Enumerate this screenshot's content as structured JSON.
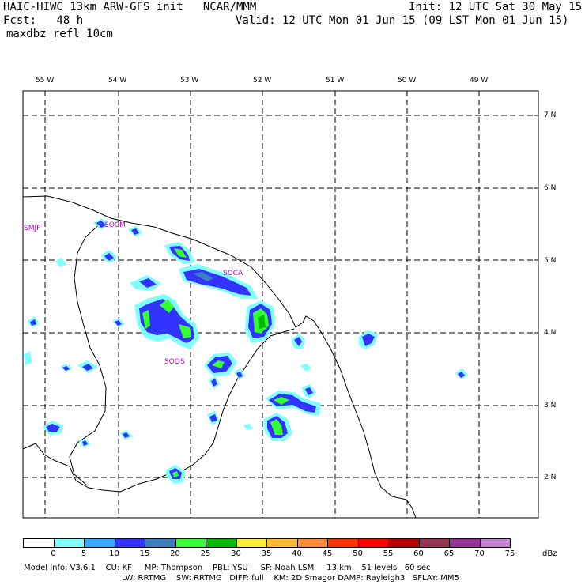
{
  "header": {
    "line1_left": "HAIC-HIWC 13km ARW-GFS init   NCAR/MMM",
    "line1_right": "Init: 12 UTC Sat 30 May 15",
    "line2_left": "Fcst:   48 h",
    "line2_right": "Valid: 12 UTC Mon 01 Jun 15 (09 LST Mon 01 Jun 15)",
    "line3": "maxdbz_refl_10cm"
  },
  "longitudes": [
    "55 W",
    "54 W",
    "53 W",
    "52 W",
    "51 W",
    "50 W",
    "49 W"
  ],
  "latitudes": [
    "7 N",
    "6 N",
    "5 N",
    "4 N",
    "3 N",
    "2 N"
  ],
  "stations": [
    "SMJP",
    "SOCM",
    "SOCA",
    "SOOS"
  ],
  "colorbar": {
    "unit": "dBz",
    "levels": [
      "0",
      "5",
      "10",
      "15",
      "20",
      "25",
      "30",
      "35",
      "40",
      "45",
      "50",
      "55",
      "60",
      "65",
      "70",
      "75"
    ],
    "colors": [
      "#ffffff",
      "#7fffff",
      "#33aaff",
      "#3333ff",
      "#3a7fbf",
      "#33ff33",
      "#00bb00",
      "#ffee33",
      "#ffbb33",
      "#ff8833",
      "#ff3300",
      "#ff0000",
      "#bb0000",
      "#993355",
      "#993399",
      "#c07fcf"
    ]
  },
  "footer": {
    "line1": "Model Info: V3.6.1    CU: KF     MP: Thompson    PBL: YSU     SF: Noah LSM     13 km    51 levels   60 sec",
    "line2": "LW: RRTMG    SW: RRTMG   DIFF: full    KM: 2D Smagor DAMP: Rayleigh3   SFLAY: MM5"
  }
}
